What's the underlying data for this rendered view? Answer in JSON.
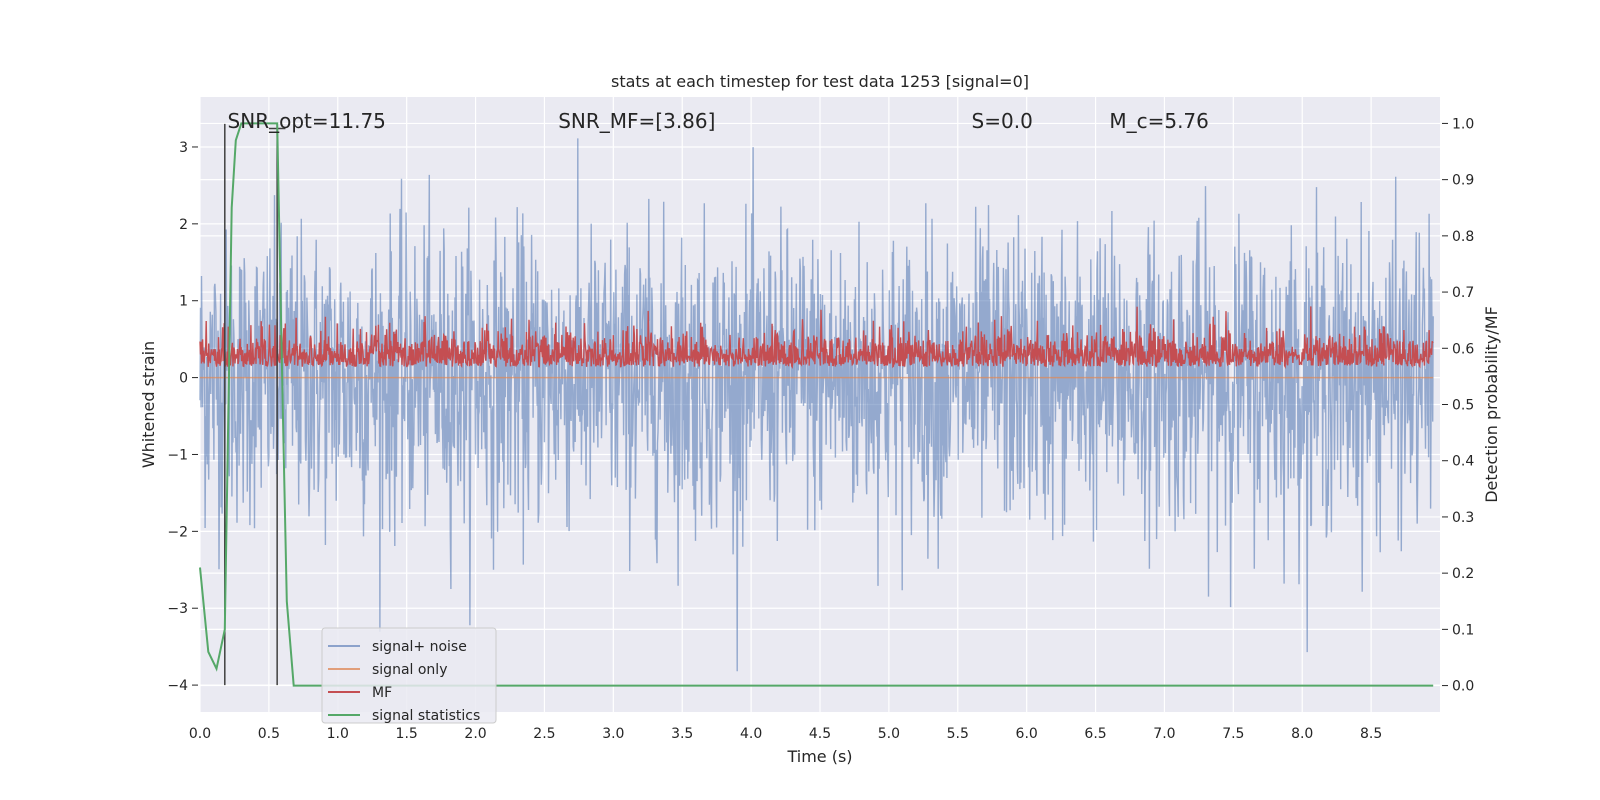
{
  "chart_data": {
    "type": "line",
    "title": "stats at each timestep for test data 1253 [signal=0]",
    "xlabel": "Time (s)",
    "ylabel_left": "Whitened strain",
    "ylabel_right": "Detection probability/MF",
    "xlim": [
      0.0,
      9.0
    ],
    "ylim_left": [
      -4.35,
      3.65
    ],
    "ylim_right": [
      -0.047,
      1.047
    ],
    "grid": true,
    "x_ticks": [
      0.0,
      0.5,
      1.0,
      1.5,
      2.0,
      2.5,
      3.0,
      3.5,
      4.0,
      4.5,
      5.0,
      5.5,
      6.0,
      6.5,
      7.0,
      7.5,
      8.0,
      8.5
    ],
    "x_tick_labels": [
      "0.0",
      "0.5",
      "1.0",
      "1.5",
      "2.0",
      "2.5",
      "3.0",
      "3.5",
      "4.0",
      "4.5",
      "5.0",
      "5.5",
      "6.0",
      "6.5",
      "7.0",
      "7.5",
      "8.0",
      "8.5"
    ],
    "y_left_ticks": [
      -4,
      -3,
      -2,
      -1,
      0,
      1,
      2,
      3
    ],
    "y_left_tick_labels": [
      "−4",
      "−3",
      "−2",
      "−1",
      "0",
      "1",
      "2",
      "3"
    ],
    "y_right_ticks": [
      0.0,
      0.1,
      0.2,
      0.3,
      0.4,
      0.5,
      0.6,
      0.7,
      0.8,
      0.9,
      1.0
    ],
    "y_right_tick_labels": [
      "0.0",
      "0.1",
      "0.2",
      "0.3",
      "0.4",
      "0.5",
      "0.6",
      "0.7",
      "0.8",
      "0.9",
      "1.0"
    ],
    "annotations": [
      {
        "text": "SNR_opt=11.75",
        "x": 0.2,
        "y": 3.35
      },
      {
        "text": "SNR_MF=[3.86]",
        "x": 2.6,
        "y": 3.35
      },
      {
        "text": "S=0.0",
        "x": 5.6,
        "y": 3.35
      },
      {
        "text": "M_c=5.76",
        "x": 6.6,
        "y": 3.35
      }
    ],
    "legend_position": "lower-left",
    "series": [
      {
        "name": "signal+ noise",
        "color": "#4c72b0",
        "axis": "left",
        "style": "noise",
        "amplitude_std": 0.95,
        "range_approx": [
          -4.0,
          3.3
        ]
      },
      {
        "name": "signal only",
        "color": "#dd8452",
        "axis": "left",
        "values_approx": 0.0
      },
      {
        "name": "MF",
        "color": "#c44e52",
        "axis": "right",
        "style": "noise",
        "range_approx": [
          0.55,
          0.69
        ]
      },
      {
        "name": "signal statistics",
        "color": "#55a868",
        "axis": "right",
        "x": [
          0.0,
          0.06,
          0.12,
          0.18,
          0.23,
          0.26,
          0.3,
          0.34,
          0.4,
          0.48,
          0.56,
          0.6,
          0.63,
          0.68,
          0.72,
          9.0
        ],
        "y": [
          0.21,
          0.06,
          0.03,
          0.1,
          0.85,
          0.97,
          1.0,
          1.0,
          1.0,
          1.0,
          1.0,
          0.5,
          0.15,
          0.0,
          0.0,
          0.0
        ]
      }
    ],
    "vertical_markers": [
      {
        "x": 0.18,
        "y_left_range": [
          -4.0,
          3.3
        ],
        "color": "#404040"
      },
      {
        "x": 0.56,
        "y_left_range": [
          -4.0,
          3.3
        ],
        "color": "#404040"
      }
    ]
  }
}
